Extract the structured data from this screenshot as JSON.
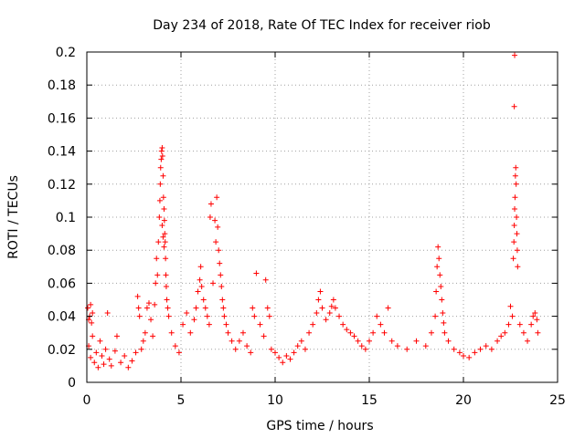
{
  "chart_data": {
    "type": "scatter",
    "title": "Day 234 of 2018, Rate Of TEC Index for receiver riob",
    "xlabel": "GPS time / hours",
    "ylabel": "ROTI / TECUs",
    "xlim": [
      0,
      25
    ],
    "ylim": [
      0,
      0.2
    ],
    "x_ticks": [
      0,
      5,
      10,
      15,
      20,
      25
    ],
    "x_tick_labels": [
      "0",
      "5",
      "10",
      "15",
      "20",
      "25"
    ],
    "y_ticks": [
      0,
      0.02,
      0.04,
      0.06,
      0.08,
      0.1,
      0.12,
      0.14,
      0.16,
      0.18,
      0.2
    ],
    "y_tick_labels": [
      "0",
      "0.02",
      "0.04",
      "0.06",
      "0.08",
      "0.1",
      "0.12",
      "0.14",
      "0.16",
      "0.18",
      "0.2"
    ],
    "grid": true,
    "marker": "+",
    "color": "#ff0000",
    "series": [
      {
        "name": "ROTI",
        "points": [
          [
            0.05,
            0.045
          ],
          [
            0.1,
            0.038
          ],
          [
            0.15,
            0.04
          ],
          [
            0.2,
            0.047
          ],
          [
            0.25,
            0.036
          ],
          [
            0.3,
            0.042
          ],
          [
            0.1,
            0.022
          ],
          [
            0.2,
            0.015
          ],
          [
            0.3,
            0.028
          ],
          [
            0.4,
            0.012
          ],
          [
            0.5,
            0.018
          ],
          [
            0.6,
            0.009
          ],
          [
            0.7,
            0.025
          ],
          [
            0.8,
            0.016
          ],
          [
            0.9,
            0.011
          ],
          [
            1.0,
            0.02
          ],
          [
            1.1,
            0.042
          ],
          [
            1.2,
            0.014
          ],
          [
            1.3,
            0.01
          ],
          [
            1.5,
            0.019
          ],
          [
            1.6,
            0.028
          ],
          [
            1.8,
            0.012
          ],
          [
            2.0,
            0.016
          ],
          [
            2.2,
            0.009
          ],
          [
            2.4,
            0.013
          ],
          [
            2.6,
            0.018
          ],
          [
            2.7,
            0.052
          ],
          [
            2.75,
            0.045
          ],
          [
            2.8,
            0.04
          ],
          [
            2.9,
            0.02
          ],
          [
            3.0,
            0.025
          ],
          [
            3.1,
            0.03
          ],
          [
            3.2,
            0.045
          ],
          [
            3.3,
            0.048
          ],
          [
            3.4,
            0.038
          ],
          [
            3.5,
            0.028
          ],
          [
            3.6,
            0.047
          ],
          [
            3.65,
            0.06
          ],
          [
            3.7,
            0.075
          ],
          [
            3.75,
            0.065
          ],
          [
            3.8,
            0.085
          ],
          [
            3.85,
            0.1
          ],
          [
            3.88,
            0.11
          ],
          [
            3.9,
            0.12
          ],
          [
            3.92,
            0.13
          ],
          [
            3.95,
            0.135
          ],
          [
            3.97,
            0.14
          ],
          [
            4.0,
            0.142
          ],
          [
            4.02,
            0.137
          ],
          [
            4.05,
            0.125
          ],
          [
            4.07,
            0.112
          ],
          [
            4.1,
            0.105
          ],
          [
            4.12,
            0.098
          ],
          [
            4.14,
            0.09
          ],
          [
            4.16,
            0.085
          ],
          [
            4.18,
            0.075
          ],
          [
            4.2,
            0.065
          ],
          [
            4.22,
            0.058
          ],
          [
            4.25,
            0.05
          ],
          [
            4.3,
            0.045
          ],
          [
            4.35,
            0.04
          ],
          [
            4.0,
            0.095
          ],
          [
            4.05,
            0.088
          ],
          [
            4.1,
            0.082
          ],
          [
            4.5,
            0.03
          ],
          [
            4.7,
            0.022
          ],
          [
            4.9,
            0.018
          ],
          [
            5.1,
            0.035
          ],
          [
            5.3,
            0.042
          ],
          [
            5.5,
            0.03
          ],
          [
            5.7,
            0.038
          ],
          [
            5.8,
            0.045
          ],
          [
            5.9,
            0.055
          ],
          [
            6.0,
            0.062
          ],
          [
            6.05,
            0.07
          ],
          [
            6.1,
            0.058
          ],
          [
            6.2,
            0.05
          ],
          [
            6.3,
            0.045
          ],
          [
            6.4,
            0.04
          ],
          [
            6.5,
            0.035
          ],
          [
            6.55,
            0.1
          ],
          [
            6.6,
            0.108
          ],
          [
            6.7,
            0.06
          ],
          [
            6.8,
            0.098
          ],
          [
            6.85,
            0.085
          ],
          [
            6.9,
            0.112
          ],
          [
            6.95,
            0.094
          ],
          [
            7.0,
            0.08
          ],
          [
            7.05,
            0.072
          ],
          [
            7.1,
            0.065
          ],
          [
            7.15,
            0.058
          ],
          [
            7.2,
            0.05
          ],
          [
            7.25,
            0.045
          ],
          [
            7.3,
            0.04
          ],
          [
            7.4,
            0.035
          ],
          [
            7.5,
            0.03
          ],
          [
            7.7,
            0.025
          ],
          [
            7.9,
            0.02
          ],
          [
            8.1,
            0.025
          ],
          [
            8.3,
            0.03
          ],
          [
            8.5,
            0.022
          ],
          [
            8.7,
            0.018
          ],
          [
            8.8,
            0.045
          ],
          [
            8.9,
            0.04
          ],
          [
            9.0,
            0.066
          ],
          [
            9.2,
            0.035
          ],
          [
            9.4,
            0.028
          ],
          [
            9.5,
            0.062
          ],
          [
            9.6,
            0.045
          ],
          [
            9.7,
            0.04
          ],
          [
            9.8,
            0.02
          ],
          [
            10.0,
            0.018
          ],
          [
            10.2,
            0.015
          ],
          [
            10.4,
            0.012
          ],
          [
            10.6,
            0.016
          ],
          [
            10.8,
            0.014
          ],
          [
            11.0,
            0.018
          ],
          [
            11.2,
            0.022
          ],
          [
            11.4,
            0.025
          ],
          [
            11.6,
            0.02
          ],
          [
            11.8,
            0.03
          ],
          [
            12.0,
            0.035
          ],
          [
            12.2,
            0.042
          ],
          [
            12.3,
            0.05
          ],
          [
            12.4,
            0.055
          ],
          [
            12.5,
            0.045
          ],
          [
            12.7,
            0.038
          ],
          [
            12.9,
            0.042
          ],
          [
            13.0,
            0.046
          ],
          [
            13.1,
            0.05
          ],
          [
            13.2,
            0.045
          ],
          [
            13.4,
            0.04
          ],
          [
            13.6,
            0.035
          ],
          [
            13.8,
            0.032
          ],
          [
            14.0,
            0.03
          ],
          [
            14.2,
            0.028
          ],
          [
            14.4,
            0.025
          ],
          [
            14.6,
            0.022
          ],
          [
            14.8,
            0.02
          ],
          [
            15.0,
            0.025
          ],
          [
            15.2,
            0.03
          ],
          [
            15.4,
            0.04
          ],
          [
            15.6,
            0.035
          ],
          [
            15.8,
            0.03
          ],
          [
            16.0,
            0.045
          ],
          [
            16.2,
            0.025
          ],
          [
            16.5,
            0.022
          ],
          [
            17.0,
            0.02
          ],
          [
            17.5,
            0.025
          ],
          [
            18.0,
            0.022
          ],
          [
            18.3,
            0.03
          ],
          [
            18.5,
            0.04
          ],
          [
            18.55,
            0.055
          ],
          [
            18.6,
            0.07
          ],
          [
            18.65,
            0.082
          ],
          [
            18.7,
            0.075
          ],
          [
            18.75,
            0.065
          ],
          [
            18.8,
            0.058
          ],
          [
            18.85,
            0.05
          ],
          [
            18.9,
            0.042
          ],
          [
            18.95,
            0.036
          ],
          [
            19.0,
            0.03
          ],
          [
            19.2,
            0.025
          ],
          [
            19.5,
            0.02
          ],
          [
            19.8,
            0.018
          ],
          [
            20.0,
            0.016
          ],
          [
            20.3,
            0.015
          ],
          [
            20.6,
            0.018
          ],
          [
            20.9,
            0.02
          ],
          [
            21.2,
            0.022
          ],
          [
            21.5,
            0.02
          ],
          [
            21.8,
            0.025
          ],
          [
            22.0,
            0.028
          ],
          [
            22.2,
            0.03
          ],
          [
            22.4,
            0.035
          ],
          [
            22.5,
            0.046
          ],
          [
            22.6,
            0.04
          ],
          [
            22.65,
            0.075
          ],
          [
            22.68,
            0.085
          ],
          [
            22.7,
            0.095
          ],
          [
            22.72,
            0.105
          ],
          [
            22.74,
            0.112
          ],
          [
            22.76,
            0.125
          ],
          [
            22.78,
            0.13
          ],
          [
            22.8,
            0.12
          ],
          [
            22.82,
            0.1
          ],
          [
            22.84,
            0.09
          ],
          [
            22.86,
            0.08
          ],
          [
            22.88,
            0.07
          ],
          [
            22.7,
            0.167
          ],
          [
            22.72,
            0.198
          ],
          [
            23.0,
            0.035
          ],
          [
            23.2,
            0.03
          ],
          [
            23.4,
            0.025
          ],
          [
            23.6,
            0.035
          ],
          [
            23.7,
            0.04
          ],
          [
            23.8,
            0.042
          ],
          [
            23.9,
            0.038
          ],
          [
            23.95,
            0.03
          ]
        ]
      }
    ]
  }
}
